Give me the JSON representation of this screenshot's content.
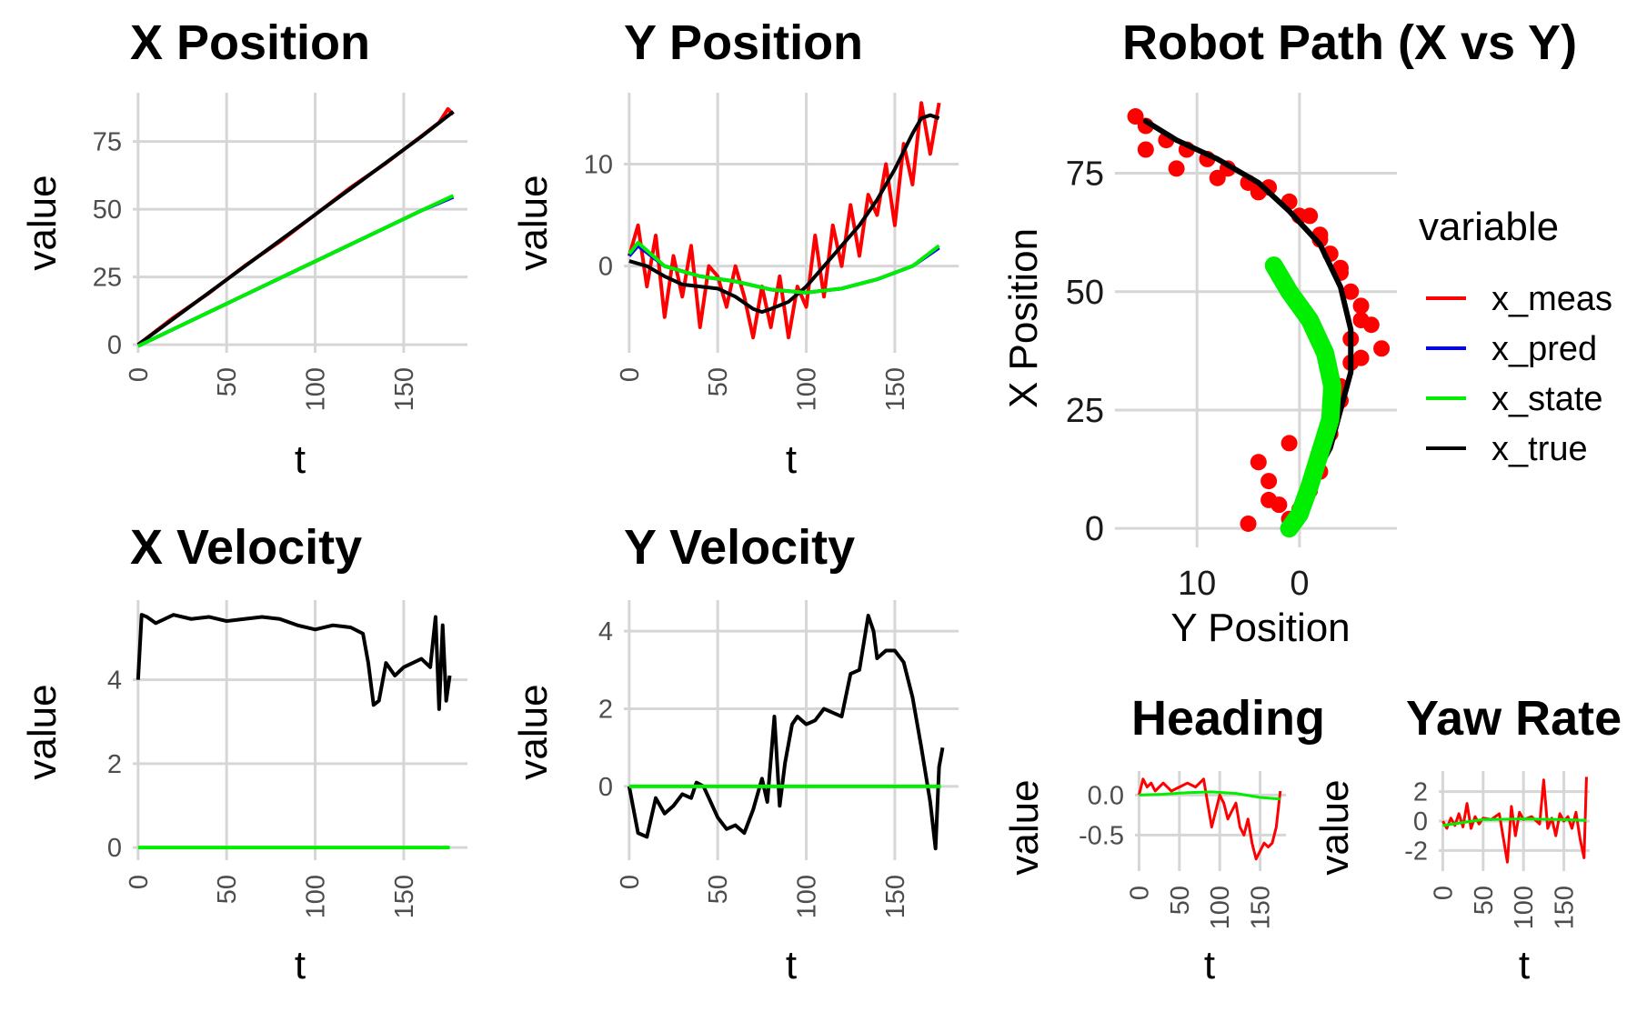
{
  "colors": {
    "x_meas": "#ff0000",
    "x_pred": "#0000ff",
    "x_state": "#00ee00",
    "x_true": "#000000",
    "grid": "#d6d6d6"
  },
  "legend": {
    "title": "variable",
    "items": [
      {
        "label": "x_meas",
        "color": "#ff0000"
      },
      {
        "label": "x_pred",
        "color": "#0000ff"
      },
      {
        "label": "x_state",
        "color": "#00ee00"
      },
      {
        "label": "x_true",
        "color": "#000000"
      }
    ]
  },
  "chart_data": [
    {
      "id": "xpos",
      "type": "line",
      "title": "X Position",
      "xlabel": "t",
      "ylabel": "value",
      "xlim": [
        -3,
        186
      ],
      "ylim": [
        -3,
        93
      ],
      "xticks": [
        0,
        50,
        100,
        150
      ],
      "yticks": [
        0,
        25,
        50,
        75
      ],
      "series": [
        {
          "name": "x_meas",
          "x": [
            0,
            20,
            40,
            60,
            80,
            100,
            120,
            140,
            160,
            170,
            175,
            178
          ],
          "y": [
            0,
            10,
            19,
            29,
            38,
            48,
            58,
            67,
            77,
            82,
            87,
            85
          ]
        },
        {
          "name": "x_true",
          "x": [
            0,
            20,
            40,
            60,
            80,
            100,
            120,
            140,
            160,
            178
          ],
          "y": [
            0,
            9.6,
            19.2,
            28.8,
            38.4,
            48,
            57.6,
            67.2,
            76.8,
            86
          ]
        },
        {
          "name": "x_pred",
          "x": [
            0,
            40,
            80,
            120,
            160,
            178
          ],
          "y": [
            -0.5,
            12,
            24.5,
            37,
            49.5,
            54.5
          ]
        },
        {
          "name": "x_state",
          "x": [
            0,
            40,
            80,
            120,
            160,
            178
          ],
          "y": [
            -0.5,
            12,
            24.5,
            37,
            49.5,
            55
          ]
        }
      ]
    },
    {
      "id": "ypos",
      "type": "line",
      "title": "Y Position",
      "xlabel": "t",
      "ylabel": "value",
      "xlim": [
        -3,
        186
      ],
      "ylim": [
        -8.5,
        17
      ],
      "xticks": [
        0,
        50,
        100,
        150
      ],
      "yticks": [
        0,
        10
      ],
      "series": [
        {
          "name": "x_meas",
          "x": [
            0,
            5,
            10,
            15,
            20,
            25,
            30,
            35,
            40,
            45,
            50,
            55,
            60,
            65,
            70,
            75,
            80,
            85,
            90,
            95,
            100,
            105,
            110,
            115,
            120,
            125,
            130,
            135,
            140,
            145,
            150,
            155,
            160,
            165,
            170,
            175
          ],
          "y": [
            1,
            4,
            -2,
            3,
            -5,
            1,
            -3,
            2,
            -6,
            0,
            -1,
            -4,
            0,
            -3,
            -7,
            -2,
            -6,
            -1,
            -7,
            -2,
            -4,
            3,
            -3,
            4,
            0,
            6,
            1,
            7,
            5,
            10,
            4,
            12,
            8,
            16,
            11,
            16
          ]
        },
        {
          "name": "x_true",
          "x": [
            0,
            10,
            20,
            30,
            40,
            50,
            60,
            70,
            75,
            80,
            90,
            100,
            110,
            120,
            130,
            140,
            150,
            160,
            165,
            170,
            175
          ],
          "y": [
            0.5,
            0,
            -1,
            -1.8,
            -2,
            -2.2,
            -3,
            -4.2,
            -4.5,
            -4.2,
            -3.5,
            -2,
            0,
            2,
            4,
            6.5,
            9.5,
            13,
            14.5,
            14.8,
            14.5
          ]
        },
        {
          "name": "x_pred",
          "x": [
            0,
            5,
            20,
            40,
            60,
            80,
            100,
            120,
            140,
            160,
            175
          ],
          "y": [
            1,
            2,
            0,
            -1,
            -1.5,
            -2.3,
            -2.6,
            -2.2,
            -1.3,
            0,
            1.8
          ]
        },
        {
          "name": "x_state",
          "x": [
            0,
            5,
            20,
            40,
            60,
            80,
            100,
            120,
            140,
            160,
            175
          ],
          "y": [
            1.2,
            2.3,
            0,
            -1,
            -1.5,
            -2.3,
            -2.6,
            -2.2,
            -1.3,
            0,
            2
          ]
        }
      ]
    },
    {
      "id": "xvel",
      "type": "line",
      "title": "X Velocity",
      "xlabel": "t",
      "ylabel": "value",
      "xlim": [
        -3,
        186
      ],
      "ylim": [
        -0.3,
        5.9
      ],
      "xticks": [
        0,
        50,
        100,
        150
      ],
      "yticks": [
        0,
        2,
        4
      ],
      "series": [
        {
          "name": "x_true",
          "x": [
            0,
            2,
            5,
            10,
            20,
            30,
            40,
            50,
            60,
            70,
            80,
            90,
            100,
            110,
            120,
            127,
            130,
            133,
            136,
            140,
            145,
            150,
            155,
            160,
            165,
            168,
            170,
            172,
            174,
            176
          ],
          "y": [
            4,
            5.55,
            5.5,
            5.35,
            5.55,
            5.45,
            5.5,
            5.4,
            5.45,
            5.5,
            5.45,
            5.3,
            5.2,
            5.3,
            5.25,
            5.1,
            4.4,
            3.4,
            3.5,
            4.4,
            4.1,
            4.3,
            4.4,
            4.5,
            4.3,
            5.5,
            3.3,
            5.3,
            3.5,
            4.1
          ]
        },
        {
          "name": "x_state",
          "x": [
            0,
            176
          ],
          "y": [
            0,
            0
          ]
        }
      ]
    },
    {
      "id": "yvel",
      "type": "line",
      "title": "Y Velocity",
      "xlabel": "t",
      "ylabel": "value",
      "xlim": [
        -3,
        186
      ],
      "ylim": [
        -1.9,
        4.8
      ],
      "xticks": [
        0,
        50,
        100,
        150
      ],
      "yticks": [
        0,
        2,
        4
      ],
      "series": [
        {
          "name": "x_true",
          "x": [
            0,
            5,
            10,
            15,
            20,
            25,
            30,
            35,
            38,
            42,
            50,
            55,
            60,
            65,
            70,
            75,
            78,
            82,
            85,
            88,
            92,
            95,
            100,
            105,
            110,
            115,
            120,
            125,
            130,
            135,
            138,
            140,
            145,
            150,
            155,
            160,
            165,
            170,
            173,
            175,
            177
          ],
          "y": [
            0,
            -1.2,
            -1.3,
            -0.3,
            -0.7,
            -0.5,
            -0.2,
            -0.3,
            0.1,
            0,
            -0.8,
            -1.1,
            -1.0,
            -1.2,
            -0.6,
            0.2,
            -0.4,
            1.8,
            -0.5,
            0.6,
            1.6,
            1.8,
            1.6,
            1.7,
            2.0,
            1.9,
            1.8,
            2.9,
            3.0,
            4.4,
            4.0,
            3.3,
            3.5,
            3.5,
            3.2,
            2.3,
            1.0,
            -0.4,
            -1.6,
            0.5,
            1
          ]
        },
        {
          "name": "x_state",
          "x": [
            0,
            176
          ],
          "y": [
            0,
            0
          ]
        }
      ]
    },
    {
      "id": "path",
      "type": "scatter",
      "title": "Robot Path (X vs Y)",
      "xlabel": "Y Position",
      "ylabel": "X Position",
      "x_reversed": true,
      "xlim": [
        18,
        -9.5
      ],
      "ylim": [
        -4,
        92
      ],
      "xticks": [
        10,
        0
      ],
      "yticks": [
        0,
        25,
        50,
        75
      ],
      "series": [
        {
          "name": "x_meas",
          "x": [
            16,
            15,
            13,
            11,
            9,
            7,
            5,
            3,
            1,
            -1,
            -2,
            -3,
            -4,
            -5,
            -6,
            -7,
            -8,
            -6,
            -5,
            -4,
            -4,
            -3,
            -3,
            -2,
            -2,
            -1,
            0,
            1,
            2,
            3,
            4,
            15,
            12,
            8,
            4,
            0,
            -2,
            -4,
            -6,
            -5,
            -3,
            1,
            3,
            5
          ],
          "y": [
            87,
            85,
            82,
            80,
            78,
            76,
            73,
            72,
            69,
            66,
            62,
            58,
            55,
            50,
            47,
            43,
            38,
            36,
            40,
            30,
            27,
            24,
            20,
            16,
            12,
            8,
            4,
            2,
            5,
            10,
            14,
            80,
            76,
            74,
            71,
            66,
            61,
            54,
            44,
            35,
            26,
            18,
            6,
            1
          ]
        },
        {
          "name": "x_true",
          "x": [
            15,
            12,
            8,
            4,
            1,
            -2,
            -4,
            -5,
            -5,
            -4,
            -3,
            -1,
            0,
            1
          ],
          "y": [
            86,
            82,
            78,
            73,
            67,
            60,
            51,
            42,
            33,
            25,
            17,
            9,
            3,
            0
          ]
        },
        {
          "name": "x_pred",
          "x": [
            2.5,
            1,
            -1,
            -2.5,
            -3.2,
            -3,
            -2,
            -1,
            0,
            1
          ],
          "y": [
            55,
            50,
            44,
            37,
            30,
            23,
            16,
            9,
            3,
            0
          ]
        },
        {
          "name": "x_state",
          "x": [
            2.5,
            1,
            -1,
            -2.5,
            -3.2,
            -3,
            -2,
            -1,
            0,
            1
          ],
          "y": [
            55.5,
            50,
            44,
            37,
            30,
            23,
            16,
            9,
            3,
            0
          ]
        }
      ]
    },
    {
      "id": "heading",
      "type": "line",
      "title": "Heading",
      "xlabel": "t",
      "ylabel": "value",
      "xlim": [
        -5,
        182
      ],
      "ylim": [
        -0.95,
        0.3
      ],
      "xticks": [
        0,
        50,
        100,
        150
      ],
      "yticks": [
        0.0,
        -0.5
      ],
      "ytick_labels": [
        "0.0",
        "-0.5"
      ],
      "series": [
        {
          "name": "x_meas",
          "x": [
            0,
            5,
            10,
            15,
            20,
            25,
            30,
            35,
            40,
            50,
            60,
            70,
            80,
            85,
            90,
            95,
            100,
            105,
            110,
            115,
            120,
            125,
            130,
            135,
            140,
            145,
            150,
            155,
            160,
            165,
            170,
            175
          ],
          "y": [
            0,
            0.2,
            0.1,
            0.15,
            0.05,
            0.1,
            0.15,
            0.1,
            0.05,
            0.1,
            0.15,
            0.1,
            0.2,
            -0.1,
            -0.4,
            -0.2,
            0,
            -0.1,
            -0.3,
            -0.2,
            -0.1,
            -0.4,
            -0.5,
            -0.3,
            -0.6,
            -0.8,
            -0.7,
            -0.6,
            -0.65,
            -0.6,
            -0.4,
            0.05
          ]
        },
        {
          "name": "x_state",
          "x": [
            0,
            30,
            60,
            90,
            120,
            150,
            175
          ],
          "y": [
            0,
            0.01,
            0.03,
            0.04,
            0.02,
            -0.03,
            -0.05
          ]
        }
      ]
    },
    {
      "id": "yaw",
      "type": "line",
      "title": "Yaw Rate",
      "xlabel": "t",
      "ylabel": "value",
      "xlim": [
        -5,
        182
      ],
      "ylim": [
        -3.4,
        3.4
      ],
      "xticks": [
        0,
        50,
        100,
        150
      ],
      "yticks": [
        2,
        0,
        -2
      ],
      "series": [
        {
          "name": "x_meas",
          "x": [
            0,
            5,
            10,
            15,
            20,
            25,
            30,
            35,
            40,
            45,
            50,
            60,
            70,
            80,
            85,
            90,
            95,
            100,
            110,
            120,
            125,
            130,
            135,
            140,
            145,
            150,
            155,
            160,
            165,
            170,
            175,
            178
          ],
          "y": [
            0,
            -0.5,
            0.2,
            -0.3,
            0.5,
            -0.4,
            1.2,
            -0.5,
            0.3,
            -0.2,
            0.2,
            0.1,
            0.5,
            -2.8,
            1,
            -1,
            0.6,
            0.1,
            0.3,
            -0.2,
            2.8,
            -0.5,
            0.2,
            -1,
            0.5,
            0,
            0.3,
            -0.5,
            0.6,
            -1.2,
            -2.5,
            3
          ]
        },
        {
          "name": "x_state",
          "x": [
            0,
            50,
            100,
            150,
            178
          ],
          "y": [
            -0.3,
            0.1,
            0.15,
            0.1,
            0.05
          ]
        }
      ]
    }
  ]
}
